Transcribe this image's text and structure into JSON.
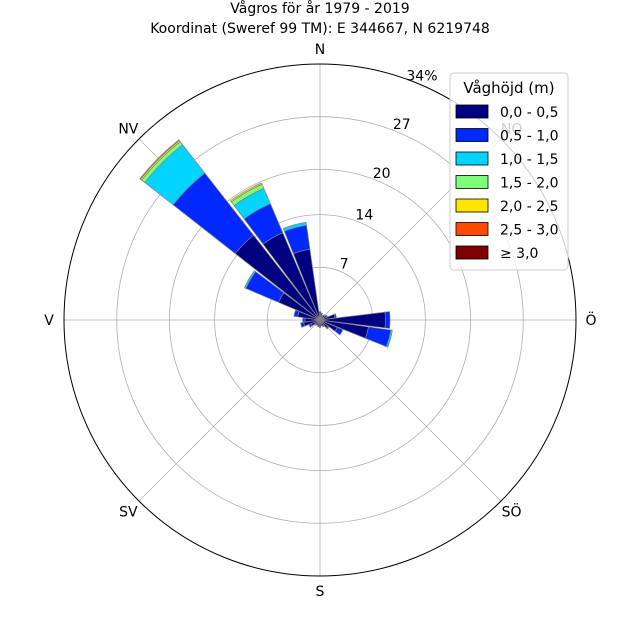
{
  "chart_data": {
    "type": "windrose",
    "title": "Vågros för år 1979 - 2019",
    "subtitle": "Koordinat (Sweref 99 TM): E 344667, N 6219748",
    "rmax": 34,
    "rticks": [
      7,
      14,
      20,
      27,
      34
    ],
    "rtick_labels": [
      "7",
      "14",
      "20",
      "27",
      "34%"
    ],
    "grid": true,
    "directions": [
      {
        "label": "N",
        "deg": 0
      },
      {
        "label": "NO",
        "deg": 45
      },
      {
        "label": "Ö",
        "deg": 90
      },
      {
        "label": "SÖ",
        "deg": 135
      },
      {
        "label": "S",
        "deg": 180
      },
      {
        "label": "SV",
        "deg": 225
      },
      {
        "label": "V",
        "deg": 270
      },
      {
        "label": "NV",
        "deg": 315
      }
    ],
    "sector_width_deg": 15,
    "legend": {
      "title": "Våghöjd (m)",
      "placement": "top-right",
      "bins": [
        {
          "label": "0,0 - 0,5",
          "color": "#000080"
        },
        {
          "label": "0,5 - 1,0",
          "color": "#0028ff"
        },
        {
          "label": "1,0 - 1,5",
          "color": "#00d4ff"
        },
        {
          "label": "1,5 - 2,0",
          "color": "#7dff7a"
        },
        {
          "label": "2,0 - 2,5",
          "color": "#ffe600"
        },
        {
          "label": "2,5 - 3,0",
          "color": "#ff4a00"
        },
        {
          "label": "≥ 3,0",
          "color": "#800000"
        }
      ]
    },
    "sectors": [
      {
        "deg": 0,
        "values": [
          0.8,
          0.3,
          0,
          0,
          0,
          0,
          0
        ]
      },
      {
        "deg": 15,
        "values": [
          0.7,
          0.2,
          0,
          0,
          0,
          0,
          0
        ]
      },
      {
        "deg": 30,
        "values": [
          0.6,
          0.1,
          0,
          0,
          0,
          0,
          0
        ]
      },
      {
        "deg": 45,
        "values": [
          0.8,
          0.1,
          0,
          0,
          0,
          0,
          0
        ]
      },
      {
        "deg": 60,
        "values": [
          1.0,
          0.1,
          0,
          0,
          0,
          0,
          0
        ]
      },
      {
        "deg": 75,
        "values": [
          2.0,
          0.2,
          0,
          0,
          0,
          0,
          0
        ]
      },
      {
        "deg": 90,
        "values": [
          8.7,
          0.6,
          0,
          0,
          0,
          0,
          0
        ]
      },
      {
        "deg": 105,
        "values": [
          6.5,
          3.0,
          0.2,
          0,
          0,
          0,
          0
        ]
      },
      {
        "deg": 120,
        "values": [
          2.5,
          0.8,
          0,
          0,
          0,
          0,
          0
        ]
      },
      {
        "deg": 135,
        "values": [
          1.3,
          0.2,
          0,
          0,
          0,
          0,
          0
        ]
      },
      {
        "deg": 150,
        "values": [
          0.9,
          0.1,
          0,
          0,
          0,
          0,
          0
        ]
      },
      {
        "deg": 165,
        "values": [
          0.7,
          0.1,
          0,
          0,
          0,
          0,
          0
        ]
      },
      {
        "deg": 180,
        "values": [
          0.9,
          0.1,
          0,
          0,
          0,
          0,
          0
        ]
      },
      {
        "deg": 195,
        "values": [
          0.8,
          0.1,
          0,
          0,
          0,
          0,
          0
        ]
      },
      {
        "deg": 210,
        "values": [
          0.7,
          0.1,
          0,
          0,
          0,
          0,
          0
        ]
      },
      {
        "deg": 225,
        "values": [
          0.8,
          0.1,
          0,
          0,
          0,
          0,
          0
        ]
      },
      {
        "deg": 240,
        "values": [
          1.3,
          0.3,
          0,
          0,
          0,
          0,
          0
        ]
      },
      {
        "deg": 255,
        "values": [
          2.2,
          0.4,
          0,
          0,
          0,
          0,
          0
        ]
      },
      {
        "deg": 270,
        "values": [
          2.0,
          0.3,
          0,
          0,
          0,
          0,
          0
        ]
      },
      {
        "deg": 285,
        "values": [
          3.0,
          0.5,
          0,
          0,
          0,
          0,
          0
        ]
      },
      {
        "deg": 300,
        "values": [
          6.0,
          4.7,
          0.2,
          0,
          0,
          0,
          0
        ]
      },
      {
        "deg": 315,
        "values": [
          14.3,
          10.5,
          4.8,
          0.5,
          0.2,
          0.1,
          0
        ]
      },
      {
        "deg": 330,
        "values": [
          12.6,
          4.2,
          2.2,
          0.6,
          0.2,
          0,
          0
        ]
      },
      {
        "deg": 345,
        "values": [
          9.5,
          3.2,
          0.4,
          0,
          0,
          0,
          0
        ]
      }
    ]
  }
}
